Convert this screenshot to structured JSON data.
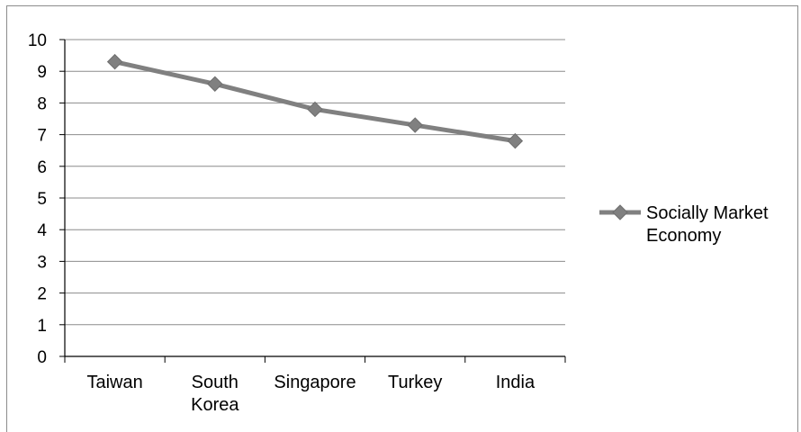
{
  "chart_data": {
    "type": "line",
    "categories": [
      "Taiwan",
      "South Korea",
      "Singapore",
      "Turkey",
      "India"
    ],
    "category_lines": [
      [
        "Taiwan"
      ],
      [
        "South",
        "Korea"
      ],
      [
        "Singapore"
      ],
      [
        "Turkey"
      ],
      [
        "India"
      ]
    ],
    "series": [
      {
        "name": "Socially Market Economy",
        "values": [
          9.3,
          8.6,
          7.8,
          7.3,
          6.8
        ],
        "color": "#808080"
      }
    ],
    "legend_lines": [
      "Socially Market",
      "Economy"
    ],
    "ylim": [
      0,
      10
    ],
    "yticks": [
      0,
      1,
      2,
      3,
      4,
      5,
      6,
      7,
      8,
      9,
      10
    ],
    "grid": true,
    "legend_position": "right",
    "marker": "diamond"
  }
}
